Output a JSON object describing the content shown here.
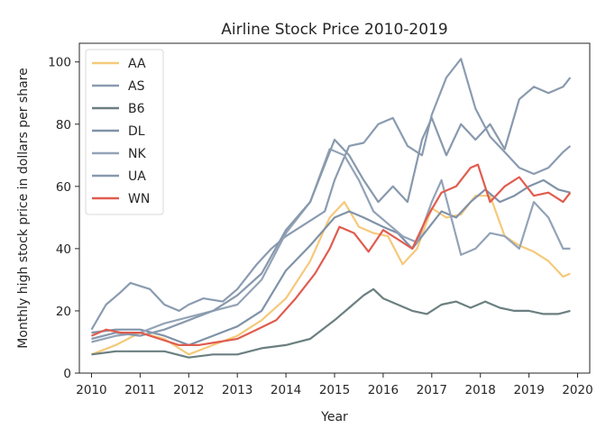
{
  "chart_data": {
    "type": "line",
    "title": "Airline Stock Price 2010-2019",
    "xlabel": "Year",
    "ylabel": "Monthly high stock price in dollars per share",
    "xlim": [
      2009.75,
      2020.25
    ],
    "ylim": [
      0,
      106
    ],
    "xticks": [
      2010,
      2011,
      2012,
      2013,
      2014,
      2015,
      2016,
      2017,
      2018,
      2019,
      2020
    ],
    "yticks": [
      0,
      20,
      40,
      60,
      80,
      100
    ],
    "grid": false,
    "legend_position": "top-left",
    "series": [
      {
        "name": "AA",
        "color": "#f5c97a",
        "x": [
          2010.0,
          2010.5,
          2011.0,
          2011.5,
          2012.0,
          2012.5,
          2013.0,
          2013.5,
          2014.0,
          2014.5,
          2014.9,
          2015.2,
          2015.5,
          2015.8,
          2016.1,
          2016.4,
          2016.7,
          2017.0,
          2017.3,
          2017.6,
          2017.9,
          2018.2,
          2018.5,
          2018.8,
          2019.1,
          2019.4,
          2019.7,
          2019.85
        ],
        "y": [
          6,
          9,
          13,
          11,
          6,
          9,
          12,
          17,
          24,
          36,
          50,
          55,
          47,
          45,
          44,
          35,
          40,
          53,
          50,
          51,
          57,
          57,
          44,
          41,
          39,
          36,
          31,
          32
        ]
      },
      {
        "name": "AS",
        "color": "#8a9bb0",
        "x": [
          2010.0,
          2010.3,
          2010.6,
          2010.8,
          2011.2,
          2011.5,
          2011.8,
          2012.0,
          2012.3,
          2012.7,
          2013.0,
          2013.4,
          2013.7,
          2014.0,
          2014.4,
          2014.8,
          2015.0,
          2015.3,
          2015.6,
          2015.9,
          2016.2,
          2016.5,
          2016.8,
          2017.0,
          2017.3,
          2017.6,
          2017.9,
          2018.2,
          2018.5,
          2018.8,
          2019.1,
          2019.4,
          2019.7,
          2019.85
        ],
        "y": [
          14,
          22,
          26,
          29,
          27,
          22,
          20,
          22,
          24,
          23,
          27,
          35,
          40,
          44,
          48,
          52,
          62,
          73,
          74,
          80,
          82,
          73,
          70,
          83,
          95,
          101,
          85,
          76,
          71,
          66,
          64,
          66,
          71,
          73
        ]
      },
      {
        "name": "B6",
        "color": "#6b7f80",
        "x": [
          2010.0,
          2010.5,
          2011.0,
          2011.5,
          2012.0,
          2012.5,
          2013.0,
          2013.5,
          2014.0,
          2014.5,
          2015.0,
          2015.3,
          2015.6,
          2015.8,
          2016.0,
          2016.3,
          2016.6,
          2016.9,
          2017.2,
          2017.5,
          2017.8,
          2018.1,
          2018.4,
          2018.7,
          2019.0,
          2019.3,
          2019.6,
          2019.85
        ],
        "y": [
          6,
          7,
          7,
          7,
          5,
          6,
          6,
          8,
          9,
          11,
          17,
          21,
          25,
          27,
          24,
          22,
          20,
          19,
          22,
          23,
          21,
          23,
          21,
          20,
          20,
          19,
          19,
          20
        ]
      },
      {
        "name": "DL",
        "color": "#7f92a8",
        "x": [
          2010.0,
          2010.5,
          2011.0,
          2011.5,
          2012.0,
          2012.5,
          2013.0,
          2013.5,
          2014.0,
          2014.5,
          2015.0,
          2015.3,
          2015.6,
          2016.0,
          2016.3,
          2016.6,
          2016.9,
          2017.2,
          2017.5,
          2017.8,
          2018.1,
          2018.4,
          2018.7,
          2019.0,
          2019.3,
          2019.6,
          2019.85
        ],
        "y": [
          13,
          14,
          14,
          12,
          9,
          12,
          15,
          20,
          33,
          41,
          50,
          52,
          50,
          47,
          45,
          40,
          46,
          52,
          50,
          55,
          59,
          55,
          57,
          60,
          62,
          59,
          58
        ]
      },
      {
        "name": "NK",
        "color": "#93a3b7",
        "x": [
          2010.0,
          2010.5,
          2011.0,
          2011.5,
          2012.0,
          2012.5,
          2013.0,
          2013.5,
          2014.0,
          2014.5,
          2014.9,
          2015.2,
          2015.5,
          2015.8,
          2016.1,
          2016.4,
          2016.7,
          2017.0,
          2017.2,
          2017.4,
          2017.6,
          2017.9,
          2018.2,
          2018.5,
          2018.8,
          2019.1,
          2019.4,
          2019.7,
          2019.85
        ],
        "y": [
          10,
          12,
          13,
          16,
          18,
          20,
          22,
          30,
          45,
          55,
          72,
          70,
          62,
          52,
          48,
          44,
          42,
          55,
          62,
          50,
          38,
          40,
          45,
          44,
          40,
          55,
          50,
          40,
          40
        ]
      },
      {
        "name": "UA",
        "color": "#8899ad",
        "x": [
          2010.0,
          2010.5,
          2011.0,
          2011.5,
          2012.0,
          2012.5,
          2013.0,
          2013.5,
          2014.0,
          2014.5,
          2015.0,
          2015.3,
          2015.6,
          2015.9,
          2016.2,
          2016.5,
          2016.8,
          2017.0,
          2017.3,
          2017.6,
          2017.9,
          2018.2,
          2018.5,
          2018.8,
          2019.1,
          2019.4,
          2019.7,
          2019.85
        ],
        "y": [
          11,
          13,
          12,
          14,
          17,
          20,
          25,
          32,
          46,
          55,
          75,
          70,
          62,
          55,
          60,
          55,
          75,
          82,
          70,
          80,
          75,
          80,
          72,
          88,
          92,
          90,
          92,
          95
        ]
      },
      {
        "name": "WN",
        "color": "#e05c4f",
        "x": [
          2010.0,
          2010.3,
          2010.6,
          2011.0,
          2011.4,
          2011.8,
          2012.2,
          2012.6,
          2013.0,
          2013.4,
          2013.8,
          2014.2,
          2014.6,
          2014.9,
          2015.1,
          2015.4,
          2015.7,
          2016.0,
          2016.3,
          2016.6,
          2016.9,
          2017.2,
          2017.5,
          2017.8,
          2017.95,
          2018.2,
          2018.5,
          2018.8,
          2019.1,
          2019.4,
          2019.7,
          2019.85
        ],
        "y": [
          12,
          14,
          13,
          13,
          11,
          9,
          9,
          10,
          11,
          14,
          17,
          24,
          32,
          40,
          47,
          45,
          39,
          46,
          43,
          40,
          50,
          58,
          60,
          66,
          67,
          55,
          60,
          63,
          57,
          58,
          55,
          58
        ]
      }
    ]
  }
}
